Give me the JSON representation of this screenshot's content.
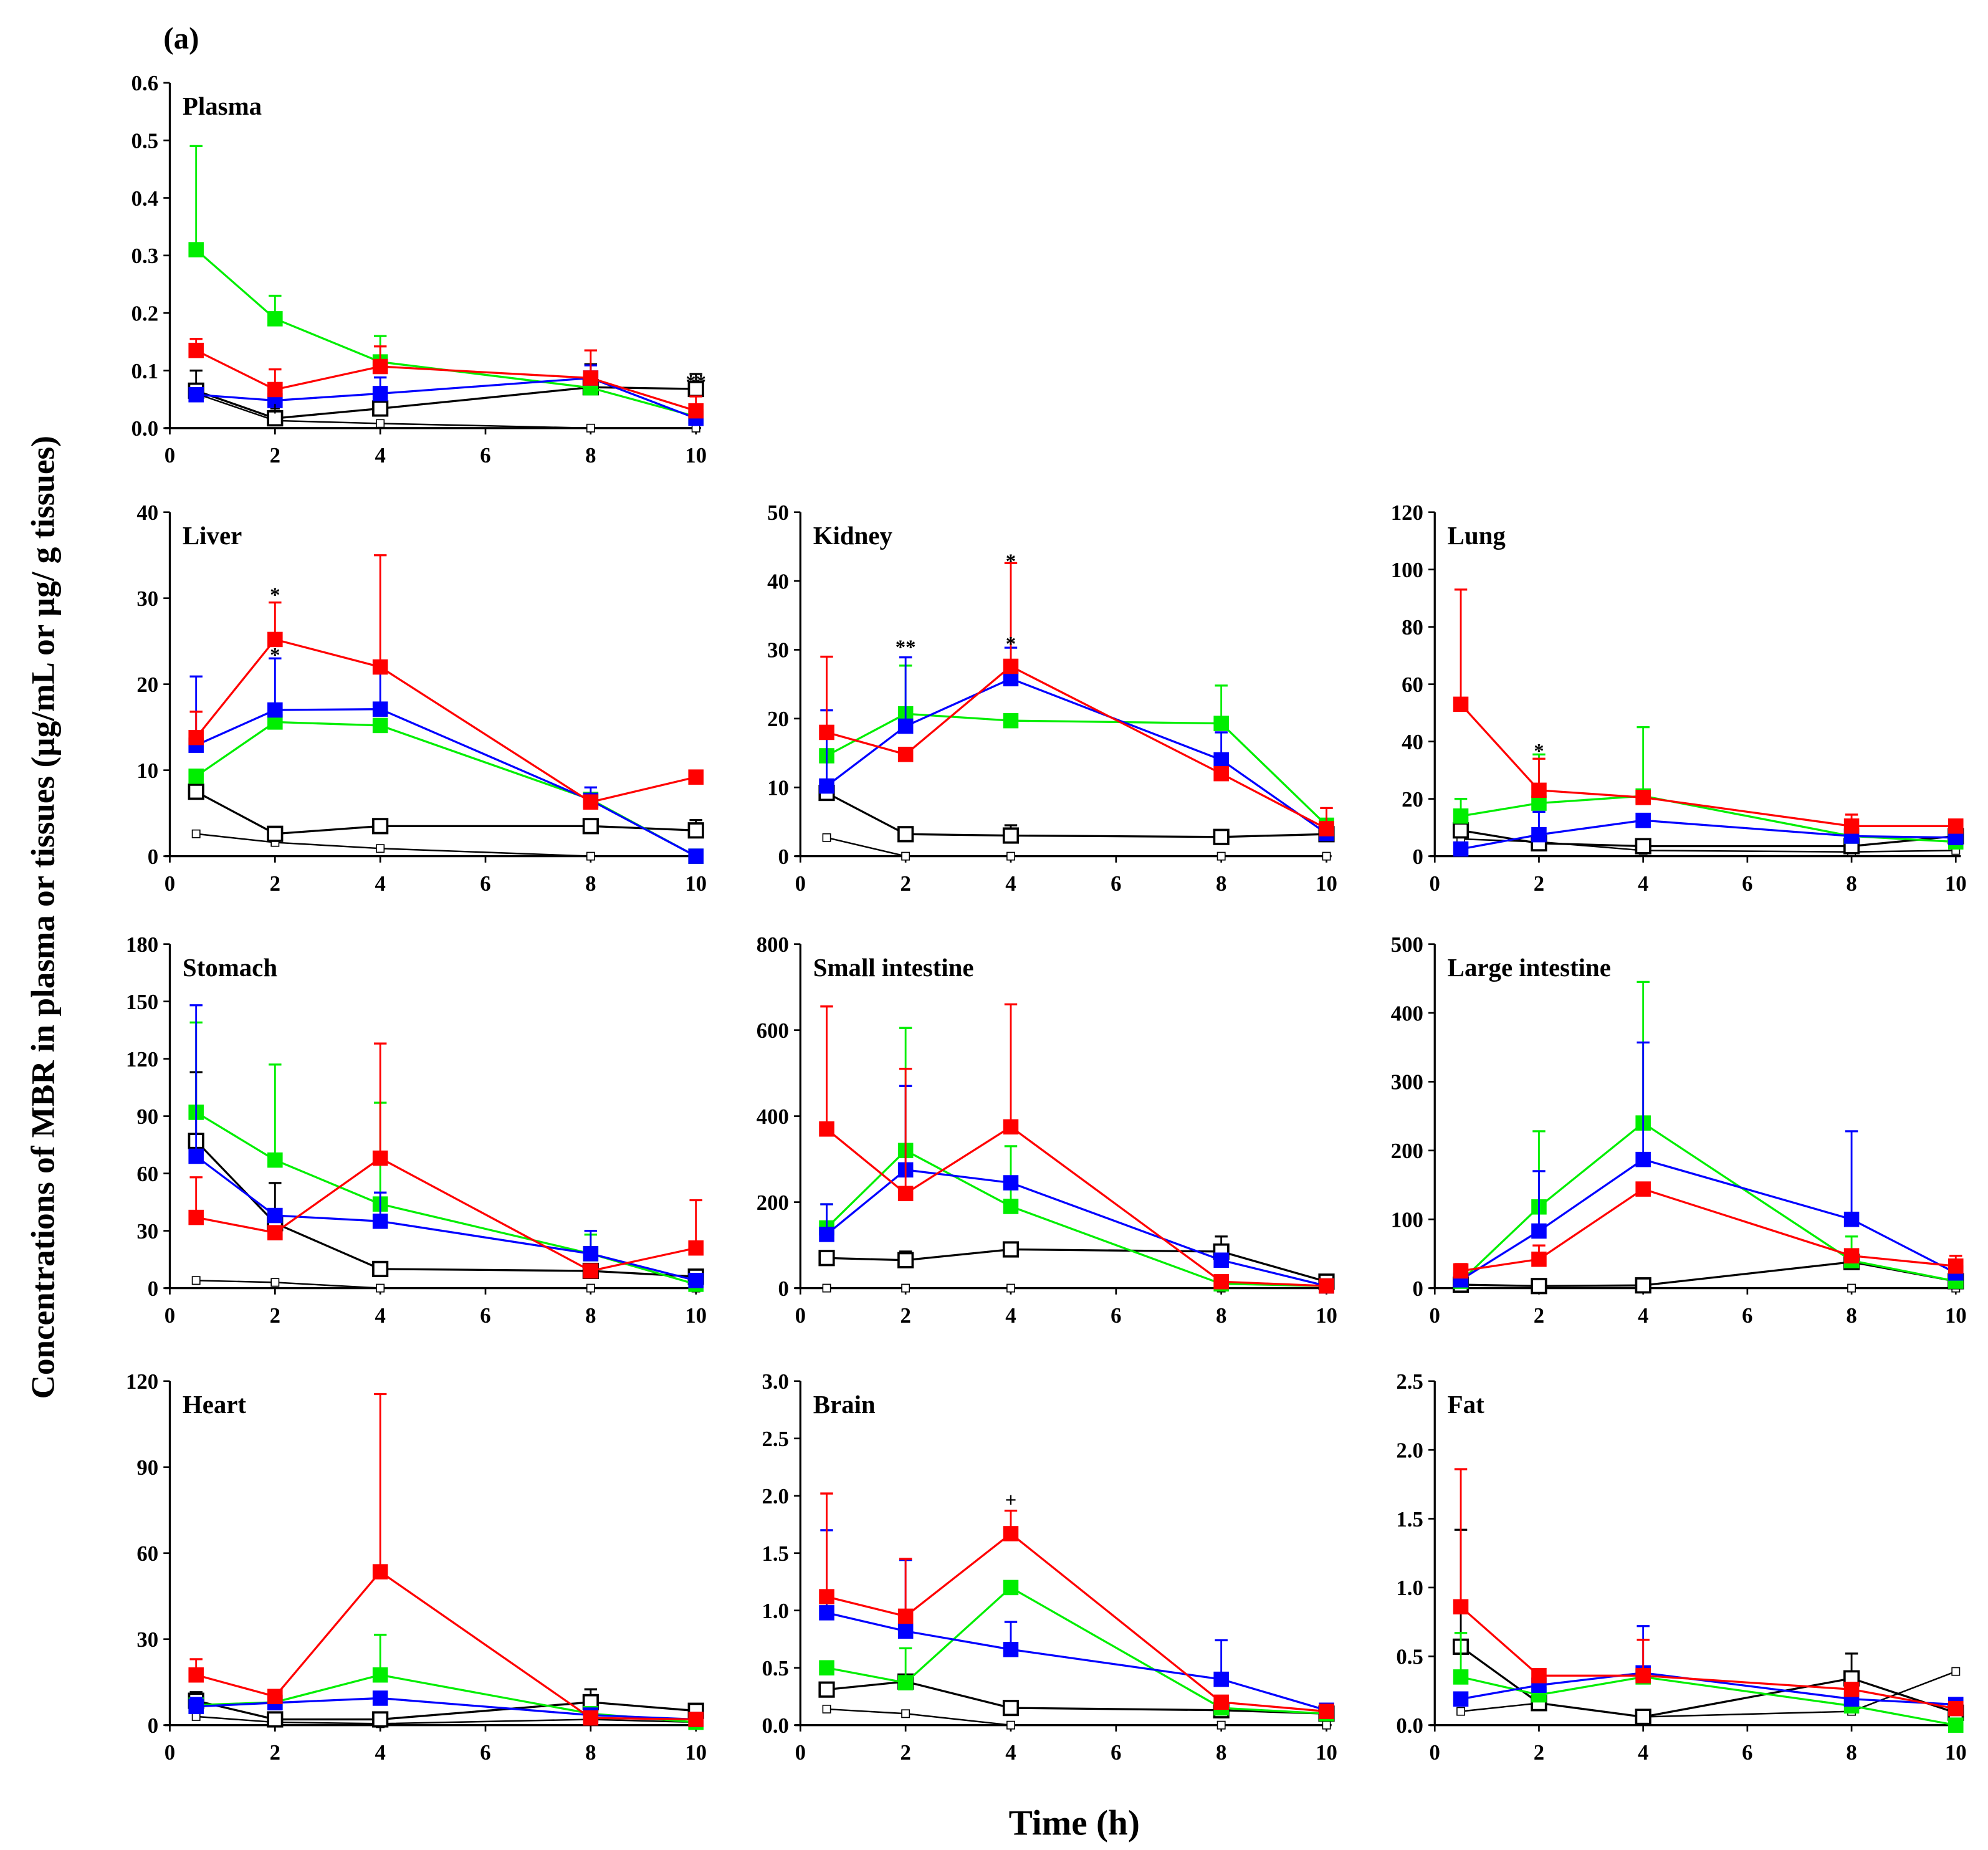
{
  "figure_label": "(a)",
  "ylabel": "Concentrations of MBR in plasma or tissues (µg/mL or µg/ g tissues)",
  "xlabel": "Time (h)",
  "chart_data": {
    "type": "line",
    "x": [
      0.5,
      2,
      4,
      8,
      10
    ],
    "xticks": [
      "0",
      "2",
      "4",
      "6",
      "8",
      "10"
    ],
    "xlim": [
      0,
      10
    ],
    "series_styles": [
      {
        "color": "#ff0000",
        "marker": "filled-square"
      },
      {
        "color": "#00ee00",
        "marker": "filled-square"
      },
      {
        "color": "#0000ff",
        "marker": "filled-square"
      },
      {
        "color": "#000000",
        "marker": "open-square"
      },
      {
        "color": "#000000",
        "marker": "small-open-square"
      }
    ],
    "panels": [
      {
        "title": "Plasma",
        "ylim": [
          0,
          0.6
        ],
        "yticks": [
          "0.0",
          "0.1",
          "0.2",
          "0.3",
          "0.4",
          "0.5",
          "0.6"
        ],
        "series": [
          {
            "values": [
              0.135,
              0.067,
              0.107,
              0.087,
              0.03
            ],
            "err": [
              0.02,
              0.035,
              0.035,
              0.048,
              0.025
            ]
          },
          {
            "values": [
              0.31,
              0.19,
              0.115,
              0.07,
              0.02
            ],
            "err": [
              0.18,
              0.04,
              0.045,
              0,
              0
            ]
          },
          {
            "values": [
              0.058,
              0.048,
              0.06,
              0.087,
              0.017
            ],
            "err": [
              0,
              0.028,
              0.028,
              0.022,
              0
            ]
          },
          {
            "values": [
              0.065,
              0.017,
              0.034,
              0.071,
              0.068
            ],
            "err": [
              0.035,
              0,
              0,
              0.04,
              0.026
            ]
          },
          {
            "values": [
              0.06,
              0.013,
              0.008,
              0,
              0
            ],
            "err": [
              0,
              0,
              0,
              0,
              0
            ]
          }
        ],
        "annotations": [
          {
            "text": "+",
            "x": 2,
            "y": 0.035
          },
          {
            "text": "**",
            "x": 10,
            "y": 0.082
          }
        ]
      },
      {
        "title": "Liver",
        "ylim": [
          0,
          40
        ],
        "yticks": [
          "0",
          "10",
          "20",
          "30",
          "40"
        ],
        "series": [
          {
            "values": [
              13.8,
              25.2,
              22,
              6.3,
              9.2
            ],
            "err": [
              3,
              4.3,
              13,
              0,
              0
            ]
          },
          {
            "values": [
              9.3,
              15.6,
              15.2,
              6.6,
              0
            ],
            "err": [
              0,
              0,
              0,
              0,
              0
            ]
          },
          {
            "values": [
              12.9,
              17,
              17.1,
              6.5,
              0
            ],
            "err": [
              8,
              6,
              4.5,
              1.5,
              0
            ]
          },
          {
            "values": [
              7.5,
              2.6,
              3.5,
              3.5,
              3.0
            ],
            "err": [
              0,
              0,
              0,
              0,
              1.2
            ]
          },
          {
            "values": [
              2.6,
              1.6,
              0.9,
              0,
              0
            ],
            "err": [
              0,
              0,
              0,
              0,
              0
            ]
          }
        ],
        "annotations": [
          {
            "text": "*",
            "x": 2,
            "y": 30.5
          },
          {
            "text": "*",
            "x": 2,
            "y": 23.5
          }
        ]
      },
      {
        "title": "Kidney",
        "ylim": [
          0,
          50
        ],
        "yticks": [
          "0",
          "10",
          "20",
          "30",
          "40",
          "50"
        ],
        "series": [
          {
            "values": [
              18,
              14.8,
              27.6,
              12,
              4
            ],
            "err": [
              11,
              0,
              15,
              0,
              3
            ]
          },
          {
            "values": [
              14.6,
              20.7,
              19.7,
              19.3,
              4.5
            ],
            "err": [
              0,
              7,
              0,
              5.5,
              0
            ]
          },
          {
            "values": [
              10.2,
              18.9,
              25.8,
              14,
              3.3
            ],
            "err": [
              11,
              10,
              4.5,
              4,
              0
            ]
          },
          {
            "values": [
              9.2,
              3.2,
              3,
              2.8,
              3.2
            ],
            "err": [
              0,
              0,
              1.5,
              1,
              0
            ]
          },
          {
            "values": [
              2.7,
              0,
              0,
              0,
              0
            ],
            "err": [
              0,
              0,
              0,
              0,
              0
            ]
          }
        ],
        "annotations": [
          {
            "text": "**",
            "x": 2,
            "y": 30.5
          },
          {
            "text": "*",
            "x": 4,
            "y": 43
          },
          {
            "text": "*",
            "x": 4,
            "y": 31
          }
        ]
      },
      {
        "title": "Lung",
        "ylim": [
          0,
          120
        ],
        "yticks": [
          "0",
          "20",
          "40",
          "60",
          "80",
          "100",
          "120"
        ],
        "series": [
          {
            "values": [
              53,
              23,
              20.5,
              10.5,
              10.5
            ],
            "err": [
              40,
              11,
              0,
              4,
              0
            ]
          },
          {
            "values": [
              14,
              18.5,
              21,
              7,
              5
            ],
            "err": [
              6,
              17,
              24,
              0,
              0
            ]
          },
          {
            "values": [
              2.5,
              7.5,
              12.5,
              7,
              6.5
            ],
            "err": [
              0,
              8,
              2,
              0,
              0
            ]
          },
          {
            "values": [
              9,
              4.5,
              3.5,
              3.5,
              7
            ],
            "err": [
              0,
              0,
              0,
              0,
              0
            ]
          },
          {
            "values": [
              6,
              5,
              2,
              1.5,
              2
            ],
            "err": [
              0,
              0,
              0,
              0,
              0
            ]
          }
        ],
        "annotations": [
          {
            "text": "*",
            "x": 2,
            "y": 37
          }
        ]
      },
      {
        "title": "Stomach",
        "ylim": [
          0,
          180
        ],
        "yticks": [
          "0",
          "30",
          "60",
          "90",
          "120",
          "150",
          "180"
        ],
        "series": [
          {
            "values": [
              37,
              29,
              68,
              9,
              21
            ],
            "err": [
              21,
              0,
              60,
              0,
              25
            ]
          },
          {
            "values": [
              92,
              67,
              44,
              18,
              2
            ],
            "err": [
              47,
              50,
              53,
              10,
              0
            ]
          },
          {
            "values": [
              69,
              38,
              35,
              18,
              4
            ],
            "err": [
              79,
              0,
              15,
              12,
              0
            ]
          },
          {
            "values": [
              77,
              34,
              10,
              9,
              6
            ],
            "err": [
              36,
              21,
              0,
              0,
              0
            ]
          },
          {
            "values": [
              4,
              3,
              0,
              0,
              0
            ],
            "err": [
              0,
              0,
              0,
              0,
              0
            ]
          }
        ],
        "annotations": []
      },
      {
        "title": "Small intestine",
        "ylim": [
          0,
          800
        ],
        "yticks": [
          "0",
          "200",
          "400",
          "600",
          "800"
        ],
        "series": [
          {
            "values": [
              370,
              220,
              375,
              15,
              5
            ],
            "err": [
              285,
              290,
              285,
              0,
              0
            ]
          },
          {
            "values": [
              140,
              320,
              190,
              10,
              5
            ],
            "err": [
              55,
              285,
              140,
              0,
              0
            ]
          },
          {
            "values": [
              125,
              275,
              245,
              65,
              5
            ],
            "err": [
              70,
              195,
              0,
              0,
              0
            ]
          },
          {
            "values": [
              70,
              65,
              90,
              85,
              15
            ],
            "err": [
              0,
              20,
              0,
              35,
              0
            ]
          },
          {
            "values": [
              0,
              0,
              0,
              0,
              0
            ],
            "err": [
              0,
              0,
              0,
              0,
              0
            ]
          }
        ],
        "annotations": []
      },
      {
        "title": "Large intestine",
        "ylim": [
          0,
          500
        ],
        "yticks": [
          "0",
          "100",
          "200",
          "300",
          "400",
          "500"
        ],
        "series": [
          {
            "values": [
              25,
              42,
              144,
              47,
              32
            ],
            "err": [
              10,
              20,
              0,
              0,
              15
            ]
          },
          {
            "values": [
              10,
              118,
              240,
              40,
              10
            ],
            "err": [
              0,
              110,
              205,
              35,
              0
            ]
          },
          {
            "values": [
              12,
              83,
              187,
              100,
              22
            ],
            "err": [
              0,
              87,
              170,
              128,
              0
            ]
          },
          {
            "values": [
              5,
              3,
              4,
              38,
              10
            ],
            "err": [
              0,
              0,
              0,
              0,
              0
            ]
          },
          {
            "values": [
              0,
              0,
              0,
              0,
              0
            ],
            "err": [
              0,
              0,
              0,
              0,
              0
            ]
          }
        ],
        "annotations": []
      },
      {
        "title": "Heart",
        "ylim": [
          0,
          120
        ],
        "yticks": [
          "0",
          "30",
          "60",
          "90",
          "120"
        ],
        "series": [
          {
            "values": [
              17.5,
              10,
              53.5,
              2.5,
              2
            ],
            "err": [
              5.5,
              0,
              62,
              0,
              0
            ]
          },
          {
            "values": [
              7,
              8,
              17.5,
              4,
              1
            ],
            "err": [
              0,
              0,
              14,
              0,
              0
            ]
          },
          {
            "values": [
              6.5,
              7.8,
              9.4,
              3.5,
              2
            ],
            "err": [
              3,
              0,
              2,
              0,
              0
            ]
          },
          {
            "values": [
              8.5,
              2,
              2,
              8,
              5
            ],
            "err": [
              3,
              0,
              0,
              4.5,
              2
            ]
          },
          {
            "values": [
              3,
              1,
              0.5,
              2,
              1
            ],
            "err": [
              0,
              0,
              0,
              0,
              0
            ]
          }
        ],
        "annotations": []
      },
      {
        "title": "Brain",
        "ylim": [
          0,
          3.0
        ],
        "yticks": [
          "0.0",
          "0.5",
          "1.0",
          "1.5",
          "2.0",
          "2.5",
          "3.0"
        ],
        "series": [
          {
            "values": [
              1.12,
              0.95,
              1.67,
              0.2,
              0.12
            ],
            "err": [
              0.9,
              0.5,
              0.2,
              0,
              0
            ]
          },
          {
            "values": [
              0.5,
              0.37,
              1.2,
              0.15,
              0.1
            ],
            "err": [
              0,
              0.3,
              0,
              0,
              0
            ]
          },
          {
            "values": [
              0.98,
              0.82,
              0.66,
              0.4,
              0.13
            ],
            "err": [
              0.72,
              0.62,
              0.24,
              0.34,
              0
            ]
          },
          {
            "values": [
              0.31,
              0.38,
              0.15,
              0.13,
              0.1
            ],
            "err": [
              0,
              0,
              0.05,
              0,
              0
            ]
          },
          {
            "values": [
              0.14,
              0.1,
              0,
              0,
              0
            ],
            "err": [
              0,
              0,
              0,
              0,
              0
            ]
          }
        ],
        "annotations": [
          {
            "text": "+",
            "x": 4,
            "y": 1.97
          }
        ]
      },
      {
        "title": "Fat",
        "ylim": [
          0,
          2.5
        ],
        "yticks": [
          "0.0",
          "0.5",
          "1.0",
          "1.5",
          "2.0",
          "2.5"
        ],
        "series": [
          {
            "values": [
              0.86,
              0.36,
              0.36,
              0.26,
              0.12
            ],
            "err": [
              1.0,
              0,
              0.26,
              0,
              0
            ]
          },
          {
            "values": [
              0.35,
              0.22,
              0.35,
              0.14,
              0
            ],
            "err": [
              0.32,
              0,
              0,
              0,
              0
            ]
          },
          {
            "values": [
              0.19,
              0.29,
              0.38,
              0.19,
              0.15
            ],
            "err": [
              0,
              0,
              0.34,
              0,
              0
            ]
          },
          {
            "values": [
              0.57,
              0.16,
              0.06,
              0.34,
              0.09
            ],
            "err": [
              0.85,
              0,
              0,
              0.18,
              0
            ]
          },
          {
            "values": [
              0.1,
              0.16,
              0.06,
              0.1,
              0.39
            ],
            "err": [
              0,
              0,
              0,
              0,
              0
            ]
          }
        ],
        "annotations": []
      }
    ]
  }
}
